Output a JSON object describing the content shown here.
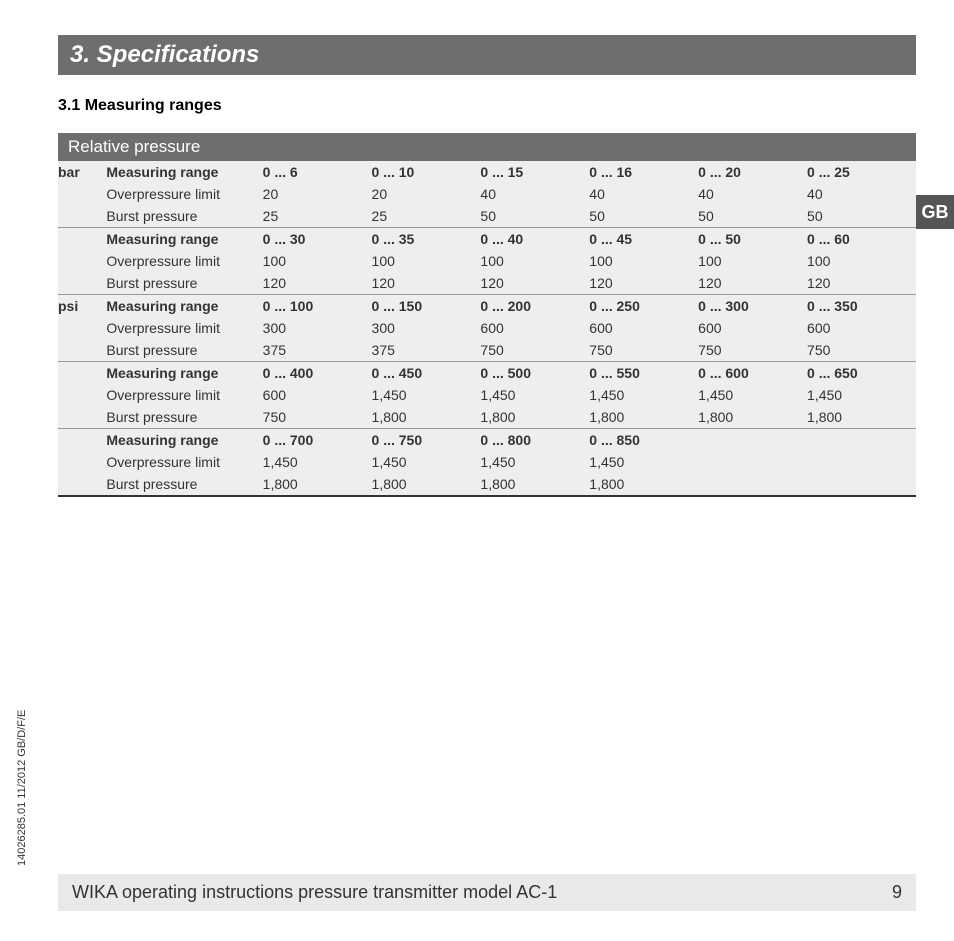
{
  "section_title": "3. Specifications",
  "subsection_title": "3.1 Measuring ranges",
  "table_title": "Relative pressure",
  "lang_tab": "GB",
  "labels": {
    "measuring_range": "Measuring range",
    "overpressure": "Overpressure limit",
    "burst": "Burst pressure"
  },
  "units": {
    "bar": "bar",
    "psi": "psi"
  },
  "bar": {
    "g1": {
      "range": [
        "0 ... 6",
        "0 ... 10",
        "0 ... 15",
        "0 ... 16",
        "0 ... 20",
        "0 ... 25"
      ],
      "over": [
        "20",
        "20",
        "40",
        "40",
        "40",
        "40"
      ],
      "burst": [
        "25",
        "25",
        "50",
        "50",
        "50",
        "50"
      ]
    },
    "g2": {
      "range": [
        "0 ... 30",
        "0 ... 35",
        "0 ... 40",
        "0 ... 45",
        "0 ... 50",
        "0 ... 60"
      ],
      "over": [
        "100",
        "100",
        "100",
        "100",
        "100",
        "100"
      ],
      "burst": [
        "120",
        "120",
        "120",
        "120",
        "120",
        "120"
      ]
    }
  },
  "psi": {
    "g1": {
      "range": [
        "0 ... 100",
        "0 ... 150",
        "0 ... 200",
        "0 ... 250",
        "0 ... 300",
        "0 ... 350"
      ],
      "over": [
        "300",
        "300",
        "600",
        "600",
        "600",
        "600"
      ],
      "burst": [
        "375",
        "375",
        "750",
        "750",
        "750",
        "750"
      ]
    },
    "g2": {
      "range": [
        "0 ... 400",
        "0 ... 450",
        "0 ... 500",
        "0 ... 550",
        "0 ... 600",
        "0 ... 650"
      ],
      "over": [
        "600",
        "1,450",
        "1,450",
        "1,450",
        "1,450",
        "1,450"
      ],
      "burst": [
        "750",
        "1,800",
        "1,800",
        "1,800",
        "1,800",
        "1,800"
      ]
    },
    "g3": {
      "range": [
        "0 ... 700",
        "0 ... 750",
        "0 ... 800",
        "0 ... 850",
        "",
        ""
      ],
      "over": [
        "1,450",
        "1,450",
        "1,450",
        "1,450",
        "",
        ""
      ],
      "burst": [
        "1,800",
        "1,800",
        "1,800",
        "1,800",
        "",
        ""
      ]
    }
  },
  "side_text": "14026285.01 11/2012 GB/D/F/E",
  "footer_text": "WIKA operating instructions pressure transmitter model AC-1",
  "page_number": "9",
  "colors": {
    "header_bg": "#6e6e6e",
    "header_fg": "#ffffff",
    "row_bg": "#eeeeee",
    "text": "#333333",
    "footer_bg": "#e9e9e9",
    "lang_bg": "#555555"
  },
  "typography": {
    "section_title_fontsize": 24,
    "subsection_fontsize": 16,
    "table_header_fontsize": 17,
    "body_fontsize": 14,
    "footer_fontsize": 18,
    "side_fontsize": 11
  }
}
